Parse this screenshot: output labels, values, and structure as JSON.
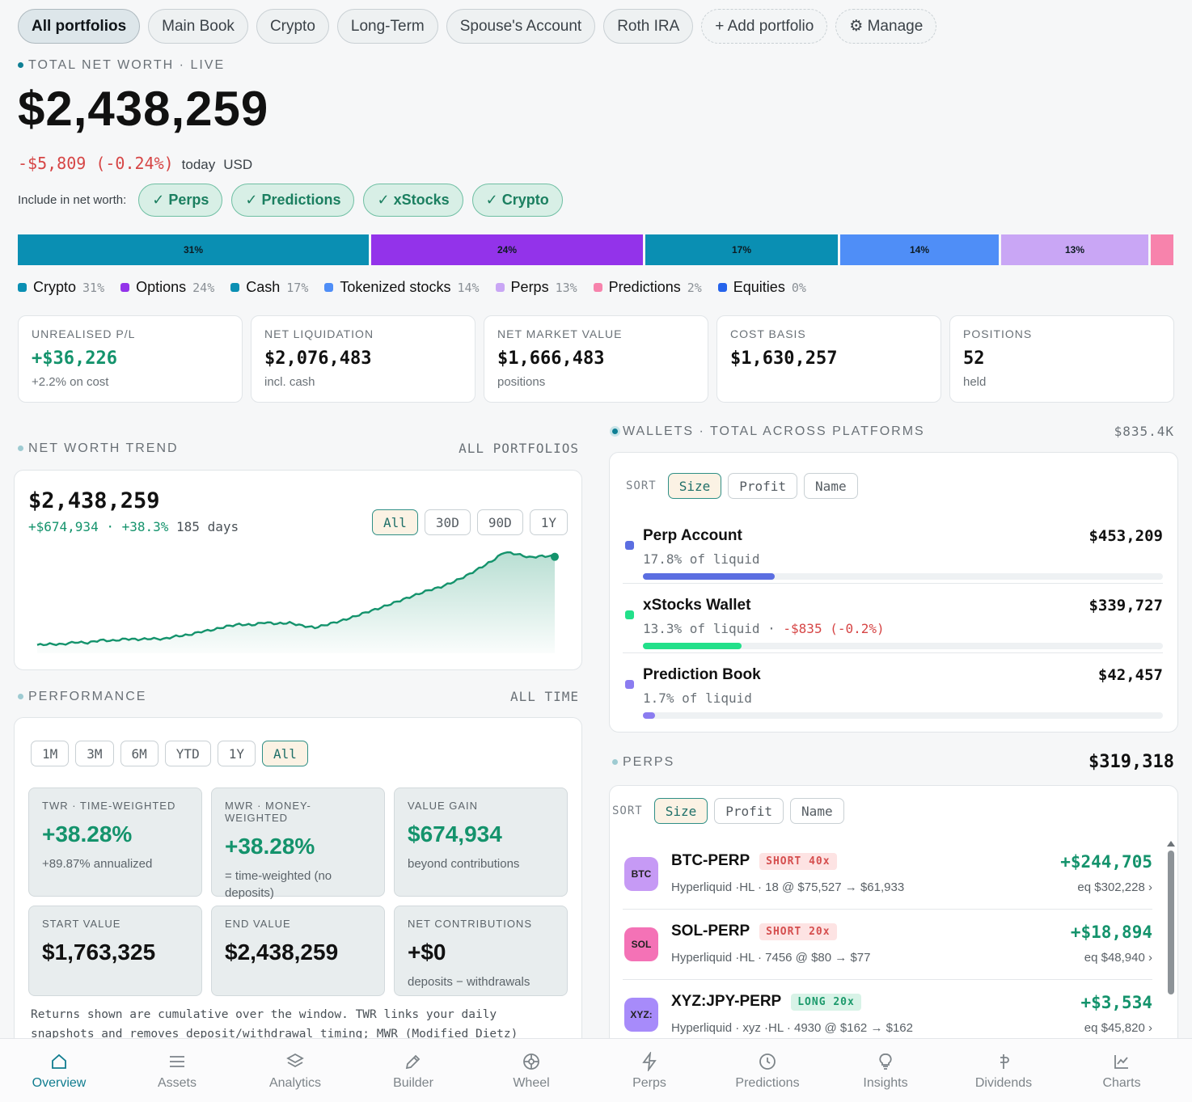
{
  "tabs": [
    {
      "label": "All portfolios",
      "active": true
    },
    {
      "label": "Main Book"
    },
    {
      "label": "Crypto"
    },
    {
      "label": "Long-Term"
    },
    {
      "label": "Spouse's Account"
    },
    {
      "label": "Roth IRA"
    },
    {
      "label": "+ Add portfolio",
      "dashed": true
    },
    {
      "label": "⚙ Manage",
      "dashed": true
    }
  ],
  "networth": {
    "label": "TOTAL NET WORTH · LIVE",
    "value": "$2,438,259",
    "change": "-$5,809 (-0.24%)",
    "period": "today",
    "currency": "USD"
  },
  "include": {
    "label": "Include in net worth:",
    "chips": [
      "✓ Perps",
      "✓ Predictions",
      "✓ xStocks",
      "✓ Crypto"
    ]
  },
  "allocation": [
    {
      "name": "Crypto",
      "pct": "31%",
      "value": 31,
      "color": "#0a8fb3"
    },
    {
      "name": "Options",
      "pct": "24%",
      "value": 24,
      "color": "#9333ea"
    },
    {
      "name": "Cash",
      "pct": "17%",
      "value": 17,
      "color": "#0a8fb3"
    },
    {
      "name": "Tokenized stocks",
      "pct": "14%",
      "value": 14,
      "color": "#4f8ef7"
    },
    {
      "name": "Perps",
      "pct": "13%",
      "value": 13,
      "color": "#c9a6f5"
    },
    {
      "name": "Predictions",
      "pct": "2%",
      "value": 2,
      "color": "#f783ac"
    },
    {
      "name": "Equities",
      "pct": "0%",
      "value": 0,
      "color": "#2563eb"
    }
  ],
  "stats": [
    {
      "title": "UNREALISED P/L",
      "value": "+$36,226",
      "sub": "+2.2% on cost",
      "green": true
    },
    {
      "title": "NET LIQUIDATION",
      "value": "$2,076,483",
      "sub": "incl. cash"
    },
    {
      "title": "NET MARKET VALUE",
      "value": "$1,666,483",
      "sub": "positions"
    },
    {
      "title": "COST BASIS",
      "value": "$1,630,257",
      "sub": ""
    },
    {
      "title": "POSITIONS",
      "value": "52",
      "sub": "held"
    }
  ],
  "trend": {
    "heading": "NET WORTH TREND",
    "scope": "ALL PORTFOLIOS",
    "value": "$2,438,259",
    "gain": "+$674,934 · +38.3%",
    "days": "185 days",
    "ranges": [
      "All",
      "30D",
      "90D",
      "1Y"
    ],
    "active_range": "All"
  },
  "chart_data": {
    "type": "area",
    "series": [
      {
        "values": [
          1763325,
          1770000,
          1768000,
          1785000,
          1779000,
          1800000,
          1795000,
          1810000,
          1805000,
          1812000,
          1808000,
          1830000,
          1840000,
          1865000,
          1880000,
          1905000,
          1920000,
          1915000,
          1935000,
          1925000,
          1932000,
          1910000,
          1895000,
          1920000,
          1945000,
          1975000,
          2010000,
          2040000,
          2075000,
          2110000,
          2145000,
          2180000,
          2205000,
          2245000,
          2290000,
          2345000,
          2400000,
          2470000,
          2455000,
          2430000,
          2440000,
          2438259
        ]
      }
    ],
    "ylim": [
      1700000,
      2500000
    ],
    "grid": false
  },
  "performance": {
    "heading": "PERFORMANCE",
    "scope": "ALL TIME",
    "ranges": [
      "1M",
      "3M",
      "6M",
      "YTD",
      "1Y",
      "All"
    ],
    "active_range": "All",
    "cells": [
      {
        "title": "TWR · TIME-WEIGHTED",
        "value": "+38.28%",
        "sub": "+89.87% annualized",
        "green": true
      },
      {
        "title": "MWR · MONEY-WEIGHTED",
        "value": "+38.28%",
        "sub": "= time-weighted (no deposits)",
        "green": true
      },
      {
        "title": "VALUE GAIN",
        "value": "$674,934",
        "sub": "beyond contributions",
        "green": true
      },
      {
        "title": "START VALUE",
        "value": "$1,763,325",
        "sub": ""
      },
      {
        "title": "END VALUE",
        "value": "$2,438,259",
        "sub": ""
      },
      {
        "title": "NET CONTRIBUTIONS",
        "value": "+$0",
        "sub": "deposits − withdrawals"
      }
    ],
    "note": "Returns shown are cumulative over the window. TWR links your daily snapshots and removes deposit/withdrawal timing; MWR (Modified Dietz)"
  },
  "wallets": {
    "heading": "WALLETS · TOTAL ACROSS PLATFORMS",
    "total": "$835.4K",
    "sort_label": "SORT",
    "sort_options": [
      "Size",
      "Profit",
      "Name"
    ],
    "items": [
      {
        "name": "Perp Account",
        "amount": "$453,209",
        "sub": "17.8% of liquid",
        "delta": "",
        "share": 0.178,
        "color": "#5b6ee1"
      },
      {
        "name": "xStocks Wallet",
        "amount": "$339,727",
        "sub": "13.3% of liquid",
        "delta": "-$835 (-0.2%)",
        "share": 0.133,
        "color": "#22e08a"
      },
      {
        "name": "Prediction Book",
        "amount": "$42,457",
        "sub": "1.7% of liquid",
        "delta": "",
        "share": 0.017,
        "color": "#8b7cf0"
      }
    ]
  },
  "perps": {
    "heading": "PERPS",
    "total": "$319,318",
    "sort_label": "SORT",
    "sort_options": [
      "Size",
      "Profit",
      "Name"
    ],
    "items": [
      {
        "badge": "BTC",
        "badge_color": "#c69af5",
        "name": "BTC-PERP",
        "tag": "SHORT 40x",
        "side": "short",
        "detail": "Hyperliquid ·HL · 18 @ $75,527 → $61,933",
        "pnl": "+$244,705",
        "eq": "eq $302,228 ›"
      },
      {
        "badge": "SOL",
        "badge_color": "#f472b6",
        "name": "SOL-PERP",
        "tag": "SHORT 20x",
        "side": "short",
        "detail": "Hyperliquid ·HL · 7456 @ $80 → $77",
        "pnl": "+$18,894",
        "eq": "eq $48,940 ›"
      },
      {
        "badge": "XYZ:",
        "badge_color": "#a78bfa",
        "name": "XYZ:JPY-PERP",
        "tag": "LONG 20x",
        "side": "long",
        "detail": "Hyperliquid · xyz ·HL · 4930 @ $162 → $162",
        "pnl": "+$3,534",
        "eq": "eq $45,820 ›"
      }
    ]
  },
  "nav": [
    {
      "label": "Overview",
      "icon": "home-icon",
      "active": true
    },
    {
      "label": "Assets",
      "icon": "list-icon"
    },
    {
      "label": "Analytics",
      "icon": "layers-icon"
    },
    {
      "label": "Builder",
      "icon": "pen-icon"
    },
    {
      "label": "Wheel",
      "icon": "wheel-icon"
    },
    {
      "label": "Perps",
      "icon": "bolt-icon"
    },
    {
      "label": "Predictions",
      "icon": "clock-icon"
    },
    {
      "label": "Insights",
      "icon": "bulb-icon"
    },
    {
      "label": "Dividends",
      "icon": "dividend-icon"
    },
    {
      "label": "Charts",
      "icon": "chart-icon"
    }
  ]
}
